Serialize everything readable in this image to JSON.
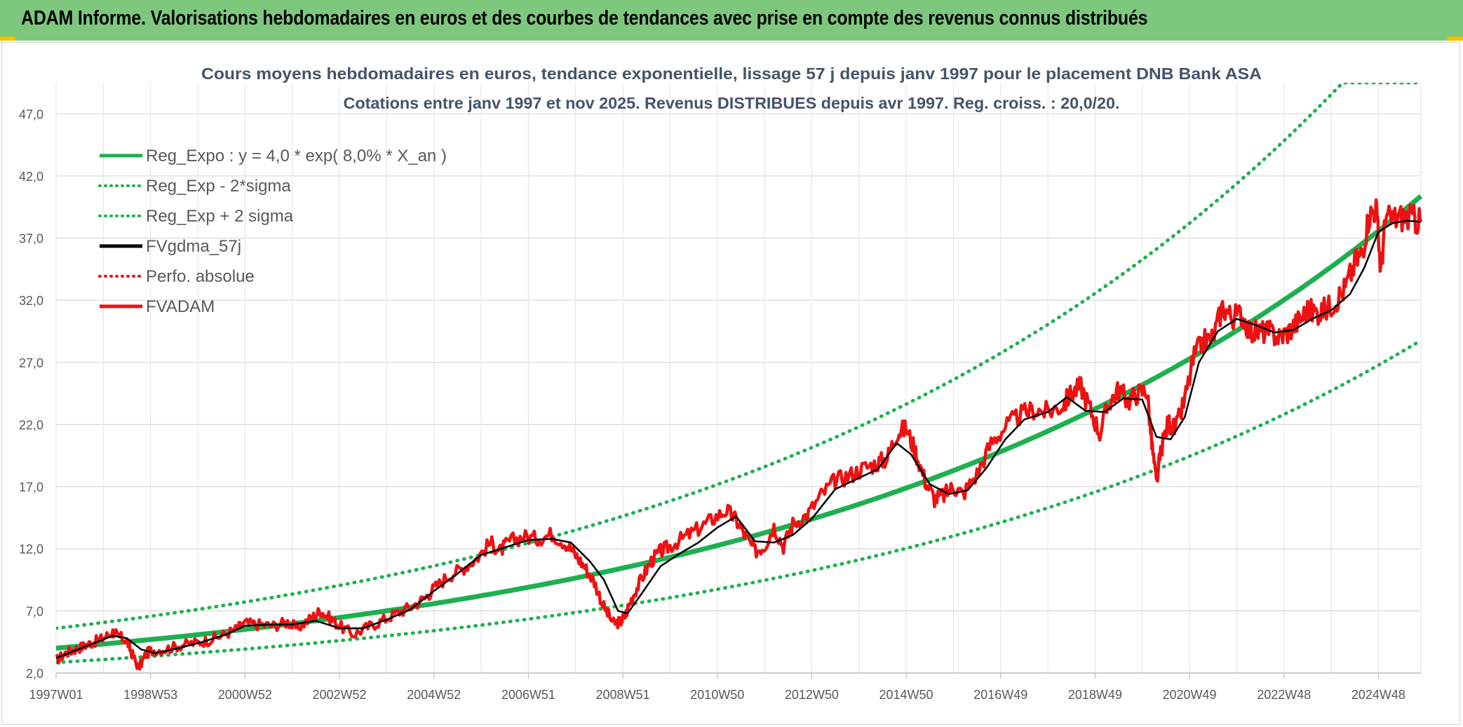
{
  "header": {
    "title": "ADAM Informe. Valorisations hebdomadaires en euros et des courbes de tendances avec prise en compte des revenus connus distribués"
  },
  "chart_data": {
    "type": "line",
    "title_lines": [
      "Cours moyens hebdomadaires en euros, tendance exponentielle, lissage 57 j depuis janv 1997 pour le placement DNB Bank ASA",
      "Cotations entre janv 1997 et nov 2025. Revenus DISTRIBUES depuis avr 1997. Reg. croiss. : 20,0/20."
    ],
    "x_range": [
      1997.0,
      2025.9
    ],
    "ylim": [
      2.0,
      49.5
    ],
    "yticks": [
      "2,0",
      "7,0",
      "12,0",
      "17,0",
      "22,0",
      "27,0",
      "32,0",
      "37,0",
      "42,0",
      "47,0"
    ],
    "ytick_values": [
      2,
      7,
      12,
      17,
      22,
      27,
      32,
      37,
      42,
      47
    ],
    "xticks": [
      "1997W01",
      "1998W53",
      "2000W52",
      "2002W52",
      "2004W52",
      "2006W51",
      "2008W51",
      "2010W50",
      "2012W50",
      "2014W50",
      "2016W49",
      "2018W49",
      "2020W49",
      "2022W48",
      "2024W48"
    ],
    "xtick_years": [
      1997.0,
      1999.0,
      2001.0,
      2003.0,
      2005.0,
      2007.0,
      2009.0,
      2011.0,
      2013.0,
      2015.0,
      2017.0,
      2019.0,
      2021.0,
      2023.0,
      2025.0
    ],
    "regression": {
      "a": 4.0,
      "rate": 0.08
    },
    "legend": [
      {
        "label": "Reg_Expo : y = 4,0 * exp( 8,0% *  X_an )",
        "color": "#1eb050",
        "style": "solid"
      },
      {
        "label": "Reg_Exp - 2*sigma",
        "color": "#1eb050",
        "style": "dotted"
      },
      {
        "label": "Reg_Exp + 2 sigma",
        "color": "#1eb050",
        "style": "dotted"
      },
      {
        "label": "FVgdma_57j",
        "color": "#000000",
        "style": "solid"
      },
      {
        "label": "Perfo. absolue",
        "color": "#ee1111",
        "style": "dotted"
      },
      {
        "label": "FVADAM",
        "color": "#ee1111",
        "style": "solid"
      }
    ],
    "series": [
      {
        "name": "Reg_Expo",
        "formula": "4.0*exp(0.08*(t-1997))",
        "start": 4.0,
        "end": 40.4
      },
      {
        "name": "Reg_Exp - 2*sigma",
        "formula": "2.85*exp(0.08*(t-1997))",
        "start": 2.85,
        "end": 28.7
      },
      {
        "name": "Reg_Exp + 2 sigma",
        "formula": "5.6*exp(0.08*(t-1997))",
        "start": 5.6,
        "end": 49.5
      },
      {
        "name": "FVADAM",
        "x": [
          1997.0,
          1997.2,
          1997.4,
          1997.6,
          1997.8,
          1998.0,
          1998.2,
          1998.3,
          1998.5,
          1998.6,
          1998.75,
          1998.9,
          1999.0,
          1999.3,
          1999.6,
          1999.9,
          2000.2,
          2000.5,
          2000.8,
          2001.0,
          2001.3,
          2001.6,
          2001.9,
          2002.1,
          2002.4,
          2002.6,
          2002.8,
          2003.0,
          2003.3,
          2003.6,
          2003.9,
          2004.2,
          2004.5,
          2004.8,
          2005.0,
          2005.3,
          2005.6,
          2005.9,
          2006.2,
          2006.4,
          2006.6,
          2006.9,
          2007.2,
          2007.5,
          2007.8,
          2008.0,
          2008.2,
          2008.4,
          2008.6,
          2008.8,
          2008.95,
          2009.05,
          2009.2,
          2009.4,
          2009.6,
          2009.8,
          2010.0,
          2010.3,
          2010.6,
          2010.9,
          2011.2,
          2011.4,
          2011.6,
          2011.8,
          2012.0,
          2012.2,
          2012.4,
          2012.6,
          2012.9,
          2013.2,
          2013.5,
          2013.8,
          2014.1,
          2014.4,
          2014.6,
          2014.8,
          2015.0,
          2015.2,
          2015.4,
          2015.6,
          2015.8,
          2016.0,
          2016.2,
          2016.5,
          2016.8,
          2017.1,
          2017.4,
          2017.7,
          2018.0,
          2018.3,
          2018.5,
          2018.7,
          2018.9,
          2019.1,
          2019.3,
          2019.5,
          2019.7,
          2019.9,
          2020.1,
          2020.2,
          2020.3,
          2020.4,
          2020.55,
          2020.7,
          2020.9,
          2021.1,
          2021.3,
          2021.5,
          2021.7,
          2021.9,
          2022.1,
          2022.3,
          2022.5,
          2022.7,
          2022.9,
          2023.1,
          2023.3,
          2023.5,
          2023.7,
          2023.9,
          2024.1,
          2024.3,
          2024.5,
          2024.65,
          2024.8,
          2024.95,
          2025.05,
          2025.15,
          2025.35,
          2025.55,
          2025.75,
          2025.9
        ],
        "values": [
          3.0,
          3.6,
          3.9,
          4.2,
          4.5,
          4.8,
          5.3,
          5.0,
          4.6,
          3.6,
          2.4,
          3.5,
          3.8,
          3.9,
          4.2,
          4.4,
          4.6,
          5.0,
          5.5,
          6.0,
          5.9,
          5.8,
          6.1,
          5.6,
          6.4,
          7.0,
          6.4,
          5.8,
          5.1,
          5.7,
          6.2,
          6.8,
          7.3,
          8.0,
          8.8,
          9.8,
          10.4,
          11.2,
          12.5,
          11.8,
          12.6,
          13.0,
          12.8,
          13.2,
          12.4,
          11.5,
          10.5,
          9.3,
          7.3,
          6.0,
          6.1,
          6.6,
          8.1,
          9.6,
          11.0,
          11.8,
          12.2,
          12.9,
          13.6,
          14.4,
          15.1,
          14.3,
          13.0,
          11.8,
          12.2,
          13.8,
          12.2,
          14.0,
          14.7,
          16.3,
          17.5,
          17.9,
          18.5,
          18.9,
          19.3,
          21.3,
          21.7,
          19.8,
          17.5,
          16.0,
          16.3,
          17.0,
          16.4,
          18.0,
          20.5,
          21.8,
          22.7,
          23.2,
          23.0,
          23.5,
          24.5,
          25.1,
          23.2,
          21.3,
          23.8,
          24.8,
          23.9,
          24.5,
          24.8,
          20.5,
          17.2,
          20.0,
          22.2,
          21.5,
          24.0,
          27.5,
          28.7,
          29.0,
          31.5,
          30.6,
          30.9,
          29.4,
          29.5,
          29.4,
          29.0,
          29.5,
          30.3,
          31.2,
          31.0,
          31.3,
          32.0,
          33.0,
          35.0,
          35.8,
          38.8,
          39.5,
          34.5,
          38.4,
          38.6,
          38.7,
          38.5,
          38.3
        ]
      },
      {
        "name": "FVgdma_57j",
        "x": [
          1997.0,
          1997.4,
          1997.8,
          1998.2,
          1998.5,
          1998.8,
          1999.1,
          1999.6,
          2000.1,
          2000.6,
          2001.0,
          2001.5,
          2002.0,
          2002.5,
          2003.0,
          2003.5,
          2004.0,
          2004.5,
          2005.0,
          2005.5,
          2006.0,
          2006.5,
          2007.0,
          2007.5,
          2007.9,
          2008.3,
          2008.6,
          2008.9,
          2009.1,
          2009.4,
          2009.8,
          2010.2,
          2010.6,
          2011.0,
          2011.4,
          2011.8,
          2012.2,
          2012.6,
          2013.0,
          2013.5,
          2014.0,
          2014.4,
          2014.8,
          2015.1,
          2015.5,
          2015.9,
          2016.3,
          2016.7,
          2017.1,
          2017.5,
          2018.0,
          2018.4,
          2018.8,
          2019.2,
          2019.6,
          2020.0,
          2020.3,
          2020.6,
          2020.9,
          2021.2,
          2021.6,
          2022.0,
          2022.4,
          2022.8,
          2023.2,
          2023.6,
          2024.0,
          2024.4,
          2024.7,
          2025.0,
          2025.3,
          2025.6,
          2025.9
        ],
        "values": [
          3.2,
          3.8,
          4.4,
          5.0,
          4.8,
          3.9,
          3.6,
          4.0,
          4.5,
          5.1,
          5.8,
          5.9,
          5.9,
          6.2,
          5.6,
          5.6,
          6.3,
          7.1,
          8.6,
          10.0,
          11.5,
          12.1,
          12.7,
          12.8,
          12.5,
          11.0,
          9.5,
          7.0,
          6.8,
          8.4,
          10.6,
          11.6,
          12.5,
          13.7,
          14.6,
          12.6,
          12.5,
          13.1,
          14.4,
          16.8,
          17.7,
          18.4,
          20.5,
          19.6,
          17.2,
          16.4,
          16.7,
          18.5,
          20.8,
          22.4,
          23.0,
          24.2,
          23.1,
          23.0,
          24.1,
          24.0,
          21.0,
          20.8,
          22.6,
          27.0,
          29.5,
          30.5,
          30.0,
          29.4,
          29.6,
          30.5,
          31.2,
          32.5,
          34.6,
          37.5,
          38.2,
          38.4,
          38.3
        ]
      }
    ]
  }
}
